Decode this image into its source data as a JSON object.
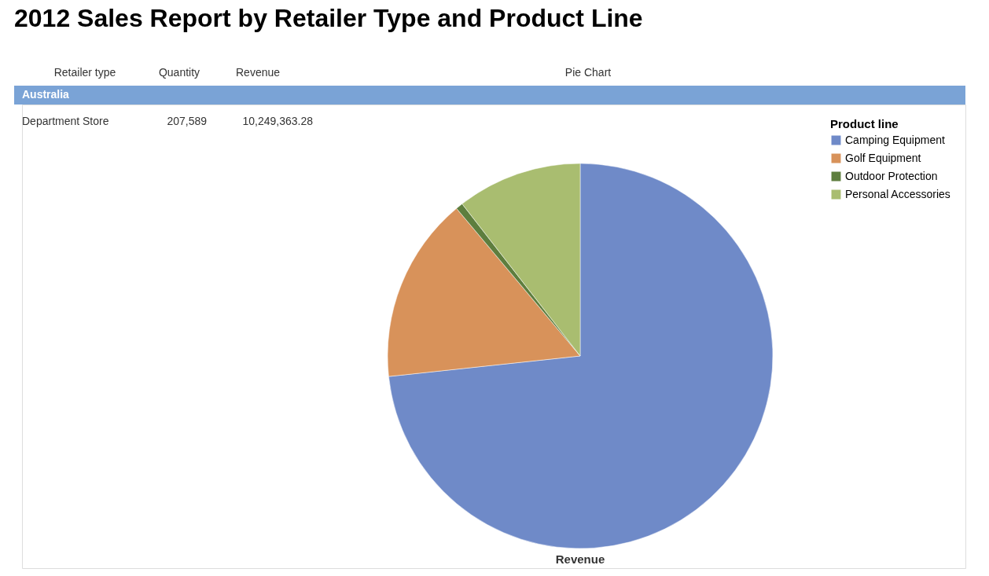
{
  "chart_data": {
    "type": "pie",
    "title": "2012 Sales Report by Retailer Type and Product Line",
    "xlabel": "Revenue",
    "legend_title": "Product line",
    "legend": "top right",
    "categories": [
      "Camping Equipment",
      "Golf Equipment",
      "Outdoor Protection",
      "Personal Accessories"
    ],
    "values": [
      73.3,
      15.6,
      0.6,
      10.5
    ],
    "colors": [
      "#6f8ac8",
      "#d8925a",
      "#5e7e3e",
      "#a9bd70"
    ],
    "annotations": [
      "Retailer type",
      "Quantity",
      "Revenue",
      "Pie Chart",
      "Australia",
      "Department Store",
      "207,589",
      "10,249,363.28"
    ]
  }
}
